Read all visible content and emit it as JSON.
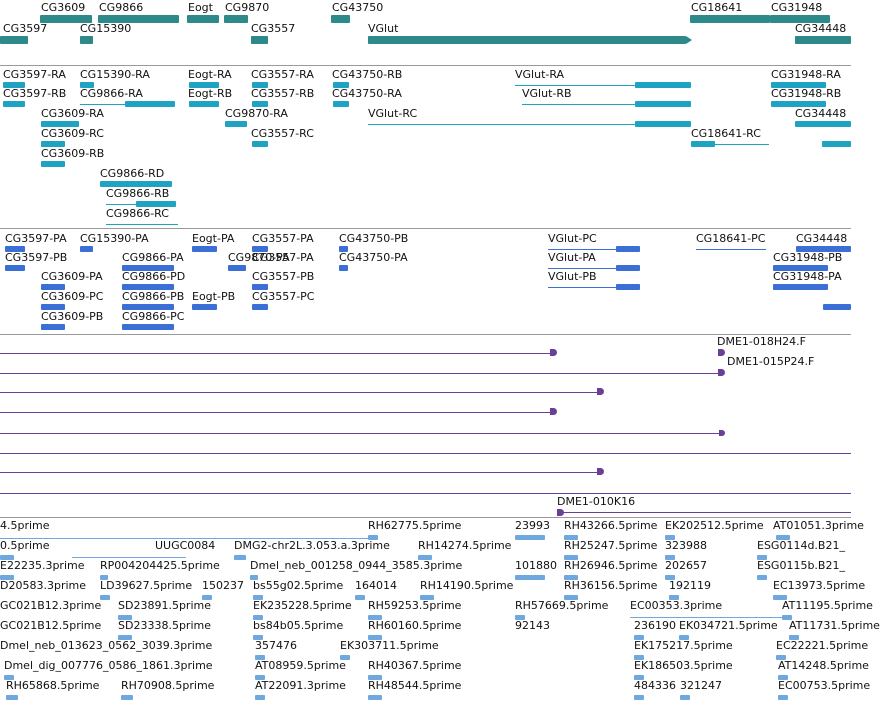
{
  "genes": [
    {
      "label": "CG3609"
    },
    {
      "label": "CG9866"
    },
    {
      "label": "Eogt"
    },
    {
      "label": "CG9870"
    },
    {
      "label": "CG43750"
    },
    {
      "label": "CG18641"
    },
    {
      "label": "CG31948"
    },
    {
      "label": "CG3597"
    },
    {
      "label": "CG15390"
    },
    {
      "label": "CG3557"
    },
    {
      "label": "VGlut"
    },
    {
      "label": "CG34448"
    }
  ],
  "transcripts": [
    {
      "label": "CG3597-RA"
    },
    {
      "label": "CG15390-RA"
    },
    {
      "label": "Eogt-RA"
    },
    {
      "label": "CG3557-RA"
    },
    {
      "label": "CG43750-RB"
    },
    {
      "label": "VGlut-RA"
    },
    {
      "label": "CG31948-RA"
    },
    {
      "label": "CG3597-RB"
    },
    {
      "label": "CG9866-RA"
    },
    {
      "label": "Eogt-RB"
    },
    {
      "label": "CG3557-RB"
    },
    {
      "label": "CG43750-RA"
    },
    {
      "label": "VGlut-RB"
    },
    {
      "label": "CG31948-RB"
    },
    {
      "label": "CG3609-RA"
    },
    {
      "label": "CG9870-RA"
    },
    {
      "label": "VGlut-RC"
    },
    {
      "label": "CG34448"
    },
    {
      "label": "CG3609-RC"
    },
    {
      "label": "CG3557-RC"
    },
    {
      "label": "CG18641-RC"
    },
    {
      "label": "CG3609-RB"
    },
    {
      "label": "CG9866-RD"
    },
    {
      "label": "CG9866-RB"
    },
    {
      "label": "CG9866-RC"
    }
  ],
  "proteins": [
    {
      "label": "CG3597-PA"
    },
    {
      "label": "CG15390-PA"
    },
    {
      "label": "Eogt-PA"
    },
    {
      "label": "CG3557-PA"
    },
    {
      "label": "CG43750-PB"
    },
    {
      "label": "VGlut-PC"
    },
    {
      "label": "CG18641-PC"
    },
    {
      "label": "CG34448"
    },
    {
      "label": "CG3597-PB"
    },
    {
      "label": "CG9866-PA"
    },
    {
      "label": "CG9870-PA"
    },
    {
      "label": "CG3557-PA"
    },
    {
      "label": "CG43750-PA"
    },
    {
      "label": "VGlut-PA"
    },
    {
      "label": "CG31948-PB"
    },
    {
      "label": "CG3609-PA"
    },
    {
      "label": "CG9866-PD"
    },
    {
      "label": "CG3557-PB"
    },
    {
      "label": "VGlut-PB"
    },
    {
      "label": "CG31948-PA"
    },
    {
      "label": "CG3609-PC"
    },
    {
      "label": "CG9866-PB"
    },
    {
      "label": "Eogt-PB"
    },
    {
      "label": "CG3557-PC"
    },
    {
      "label": "CG3609-PB"
    },
    {
      "label": "CG9866-PC"
    }
  ],
  "clones": [
    {
      "label": "DME1-018H24.F"
    },
    {
      "label": "DME1-015P24.F"
    },
    {
      "label": "DME1-010K16"
    }
  ],
  "ests": [
    "4.5prime",
    "RH62775.5prime",
    "23993",
    "RH43266.5prime",
    "EK202512.5prime",
    "AT01051.3prime",
    "0.5prime",
    "UUGC0084",
    "DMG2-chr2L.3.053.a.3prime",
    "RH14274.5prime",
    "RH25247.5prime",
    "323988",
    "ESG0114d.B21_",
    "E22235.3prime",
    "RP004204425.5prime",
    "Dmel_neb_001258_0944_3585.3prime",
    "101880",
    "RH26946.5prime",
    "202657",
    "ESG0115b.B21_",
    "D20583.3prime",
    "LD39627.5prime",
    "150237",
    "bs55g02.5prime",
    "164014",
    "RH14190.5prime",
    "RH36156.5prime",
    "192119",
    "EC13973.5prime",
    "GC021B12.3prime",
    "SD23891.5prime",
    "EK235228.5prime",
    "RH59253.5prime",
    "RH57669.5prime",
    "EC00353.3prime",
    "AT11195.5prime",
    "GC021B12.5prime",
    "SD23338.5prime",
    "bs84b05.5prime",
    "RH60160.5prime",
    "92143",
    "236190",
    "EK034721.5prime",
    "AT11731.5prime",
    "Dmel_neb_013623_0562_3039.3prime",
    "357476",
    "EK303711.5prime",
    "EK175217.5prime",
    "EC22221.5prime",
    "Dmel_dig_007776_0586_1861.3prime",
    "AT08959.5prime",
    "RH40367.5prime",
    "EK186503.5prime",
    "AT14248.5prime",
    "RH65868.5prime",
    "RH70908.5prime",
    "AT22091.3prime",
    "RH48544.5prime",
    "484336",
    "321247",
    "EC00753.5prime"
  ],
  "colors": {
    "gene": "#2e8a8a",
    "transcript": "#1ea3c2",
    "protein": "#3c6fd6",
    "clone": "#6a3f9a",
    "est": "#6ea8de",
    "divider": "#9a9a9a"
  }
}
